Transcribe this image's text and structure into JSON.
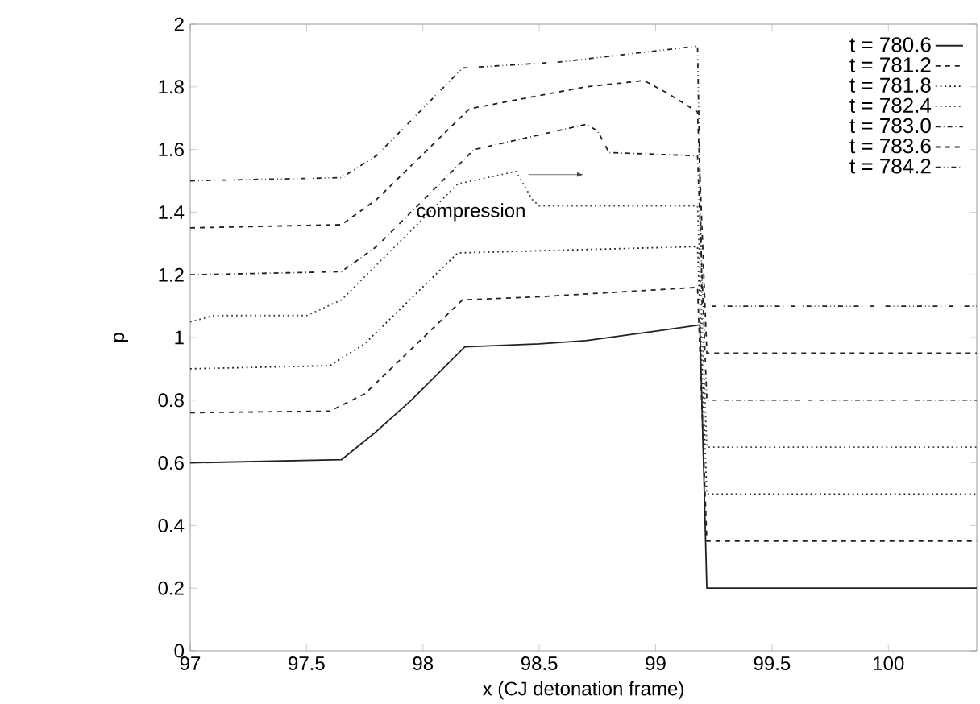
{
  "chart_data": {
    "type": "line",
    "xlabel": "x (CJ detonation frame)",
    "ylabel": "p",
    "xlim": [
      97,
      100.38
    ],
    "ylim": [
      0,
      2
    ],
    "xticks": [
      97,
      97.5,
      98,
      98.5,
      99,
      99.5,
      100
    ],
    "yticks": [
      0,
      0.2,
      0.4,
      0.6,
      0.8,
      1,
      1.2,
      1.4,
      1.6,
      1.8,
      2
    ],
    "legend": "top right",
    "grid": false,
    "marker": "none",
    "annotations": [
      "compression"
    ],
    "series": [
      {
        "name": "t = 780.6",
        "color": "#222222",
        "line_style": "solid",
        "x": [
          97,
          97.65,
          97.8,
          97.95,
          98.18,
          98.5,
          98.7,
          99.0,
          99.19,
          99.22,
          100.38
        ],
        "values": [
          0.6,
          0.61,
          0.7,
          0.8,
          0.97,
          0.98,
          0.99,
          1.02,
          1.04,
          0.2,
          0.2
        ]
      },
      {
        "name": "t = 781.2",
        "color": "#222222",
        "line_style": "dashed",
        "x": [
          97,
          97.6,
          97.75,
          98.17,
          98.5,
          99.18,
          99.22,
          100.38
        ],
        "values": [
          0.76,
          0.765,
          0.82,
          1.12,
          1.13,
          1.16,
          0.35,
          0.35
        ]
      },
      {
        "name": "t = 781.8",
        "color": "#222222",
        "line_style": "dotted",
        "x": [
          97,
          97.6,
          97.75,
          98.15,
          99.18,
          99.22,
          100.38
        ],
        "values": [
          0.9,
          0.91,
          0.98,
          1.27,
          1.29,
          0.5,
          0.5
        ]
      },
      {
        "name": "t = 782.4",
        "color": "#444444",
        "line_style": "dotted",
        "x": [
          97,
          97.1,
          97.5,
          97.65,
          98.15,
          98.4,
          98.47,
          98.5,
          99.18,
          99.22,
          100.38
        ],
        "values": [
          1.05,
          1.07,
          1.07,
          1.12,
          1.49,
          1.53,
          1.44,
          1.42,
          1.42,
          0.65,
          0.65
        ]
      },
      {
        "name": "t = 783.0",
        "color": "#222222",
        "line_style": "dashdot",
        "x": [
          97,
          97.65,
          97.8,
          98.22,
          98.7,
          98.75,
          98.8,
          99.18,
          99.22,
          100.38
        ],
        "values": [
          1.2,
          1.21,
          1.29,
          1.6,
          1.68,
          1.66,
          1.59,
          1.58,
          0.8,
          0.8
        ]
      },
      {
        "name": "t = 783.6",
        "color": "#222222",
        "line_style": "dashed",
        "x": [
          97,
          97.65,
          97.8,
          98.2,
          98.7,
          98.95,
          99.05,
          99.18,
          99.22,
          100.38
        ],
        "values": [
          1.35,
          1.36,
          1.44,
          1.73,
          1.8,
          1.82,
          1.78,
          1.72,
          0.95,
          0.95
        ]
      },
      {
        "name": "t = 784.2",
        "color": "#222222",
        "line_style": "dashdotdot",
        "x": [
          97,
          97.65,
          97.8,
          98.17,
          98.6,
          99.18,
          99.2,
          100.38
        ],
        "values": [
          1.5,
          1.51,
          1.58,
          1.86,
          1.88,
          1.93,
          1.1,
          1.1
        ]
      }
    ]
  }
}
